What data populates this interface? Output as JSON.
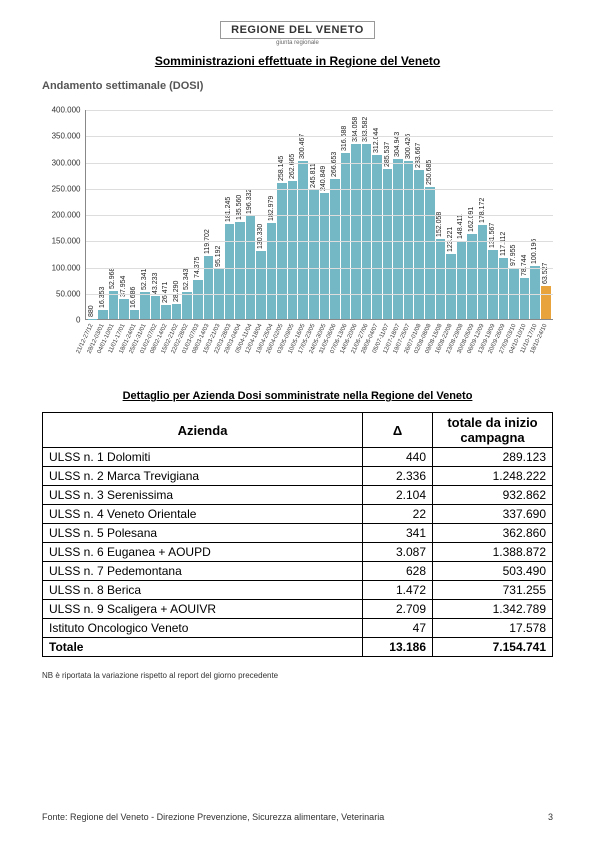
{
  "header": {
    "logo_text": "REGIONE DEL VENETO",
    "logo_sub": "giunta regionale",
    "main_title": "Somministrazioni effettuate in  Regione del Veneto",
    "subtitle": "Andamento settimanale (DOSI)"
  },
  "chart": {
    "type": "bar",
    "y_max": 400000,
    "y_ticks": [
      "0",
      "50.000",
      "100.000",
      "150.000",
      "200.000",
      "250.000",
      "300.000",
      "350.000",
      "400.000"
    ],
    "bar_color": "#73b8c4",
    "highlight_color": "#e8a33d",
    "grid_color": "#dddddd",
    "background": "#ffffff",
    "label_fontsize": 7,
    "bars": [
      {
        "x": "21/12-27/12",
        "v": 880,
        "l": "880"
      },
      {
        "x": "28/12-03/01",
        "v": 16353,
        "l": "16.353"
      },
      {
        "x": "04/01-10/01",
        "v": 52968,
        "l": "52.968"
      },
      {
        "x": "11/01-17/01",
        "v": 37954,
        "l": "37.954"
      },
      {
        "x": "18/01-24/01",
        "v": 16686,
        "l": "16.686"
      },
      {
        "x": "25/01-31/01",
        "v": 52341,
        "l": "52.341"
      },
      {
        "x": "01/02-07/02",
        "v": 43233,
        "l": "43.233"
      },
      {
        "x": "08/02-14/02",
        "v": 26471,
        "l": "26.471"
      },
      {
        "x": "15/02-21/02",
        "v": 28290,
        "l": "28.290"
      },
      {
        "x": "22/02-28/02",
        "v": 52343,
        "l": "52.343"
      },
      {
        "x": "01/03-07/03",
        "v": 74375,
        "l": "74.375"
      },
      {
        "x": "08/03-14/03",
        "v": 119702,
        "l": "119.702"
      },
      {
        "x": "15/03-21/03",
        "v": 95192,
        "l": "95.192"
      },
      {
        "x": "22/03-28/03",
        "v": 181245,
        "l": "181.245"
      },
      {
        "x": "29/03-04/04",
        "v": 185560,
        "l": "185.560"
      },
      {
        "x": "05/04-11/04",
        "v": 196332,
        "l": "196.332"
      },
      {
        "x": "12/04-18/04",
        "v": 130330,
        "l": "130.330"
      },
      {
        "x": "19/04-25/04",
        "v": 182979,
        "l": "182.979"
      },
      {
        "x": "26/04-02/05",
        "v": 258145,
        "l": "258.145"
      },
      {
        "x": "03/05-09/05",
        "v": 262665,
        "l": "262.665"
      },
      {
        "x": "10/05-16/05",
        "v": 300467,
        "l": "300.467"
      },
      {
        "x": "17/05-23/05",
        "v": 245811,
        "l": "245.811"
      },
      {
        "x": "24/05-30/05",
        "v": 240849,
        "l": "240.849"
      },
      {
        "x": "31/05-06/06",
        "v": 266653,
        "l": "266.653"
      },
      {
        "x": "07/06-13/06",
        "v": 316688,
        "l": "316.688"
      },
      {
        "x": "14/06-20/06",
        "v": 334058,
        "l": "334.058"
      },
      {
        "x": "21/06-27/06",
        "v": 333582,
        "l": "333.582"
      },
      {
        "x": "28/06-04/07",
        "v": 312044,
        "l": "312.044"
      },
      {
        "x": "05/07-11/07",
        "v": 285537,
        "l": "285.537"
      },
      {
        "x": "12/07-18/07",
        "v": 304943,
        "l": "304.943"
      },
      {
        "x": "19/07-25/07",
        "v": 300426,
        "l": "300.426"
      },
      {
        "x": "26/07-01/08",
        "v": 283667,
        "l": "283.667"
      },
      {
        "x": "02/08-08/08",
        "v": 250685,
        "l": "250.685"
      },
      {
        "x": "09/08-15/08",
        "v": 152058,
        "l": "152.058"
      },
      {
        "x": "16/08-22/08",
        "v": 123221,
        "l": "123.221"
      },
      {
        "x": "23/08-29/08",
        "v": 148411,
        "l": "148.411"
      },
      {
        "x": "30/08-05/09",
        "v": 162091,
        "l": "162.091"
      },
      {
        "x": "06/09-12/09",
        "v": 178172,
        "l": "178.172"
      },
      {
        "x": "13/09-19/09",
        "v": 131567,
        "l": "131.567"
      },
      {
        "x": "20/09-26/09",
        "v": 117112,
        "l": "117.112"
      },
      {
        "x": "27/09-03/10",
        "v": 97955,
        "l": "97.955"
      },
      {
        "x": "04/10-10/10",
        "v": 78744,
        "l": "78.744"
      },
      {
        "x": "11/10-17/10",
        "v": 100196,
        "l": "100.196"
      },
      {
        "x": "18/10-24/10",
        "v": 63527,
        "l": "63.527",
        "highlight": true
      }
    ]
  },
  "table": {
    "title": "Dettaglio per Azienda Dosi somministrate nella Regione del Veneto",
    "headers": {
      "azienda": "Azienda",
      "delta": "Δ",
      "totale": "totale da inizio campagna"
    },
    "rows": [
      {
        "name": "ULSS n. 1 Dolomiti",
        "delta": "440",
        "tot": "289.123"
      },
      {
        "name": "ULSS n. 2 Marca Trevigiana",
        "delta": "2.336",
        "tot": "1.248.222"
      },
      {
        "name": "ULSS n. 3 Serenissima",
        "delta": "2.104",
        "tot": "932.862"
      },
      {
        "name": "ULSS n. 4 Veneto Orientale",
        "delta": "22",
        "tot": "337.690"
      },
      {
        "name": "ULSS n. 5 Polesana",
        "delta": "341",
        "tot": "362.860"
      },
      {
        "name": "ULSS n. 6 Euganea + AOUPD",
        "delta": "3.087",
        "tot": "1.388.872"
      },
      {
        "name": "ULSS n. 7 Pedemontana",
        "delta": "628",
        "tot": "503.490"
      },
      {
        "name": "ULSS n. 8 Berica",
        "delta": "1.472",
        "tot": "731.255"
      },
      {
        "name": "ULSS n. 9 Scaligera + AOUIVR",
        "delta": "2.709",
        "tot": "1.342.789"
      },
      {
        "name": "Istituto Oncologico Veneto",
        "delta": "47",
        "tot": "17.578"
      }
    ],
    "total": {
      "name": "Totale",
      "delta": "13.186",
      "tot": "7.154.741"
    }
  },
  "note": "NB è riportata la variazione rispetto al report del giorno precedente",
  "footer": {
    "source": "Fonte: Regione del Veneto - Direzione Prevenzione, Sicurezza alimentare, Veterinaria",
    "page": "3"
  }
}
